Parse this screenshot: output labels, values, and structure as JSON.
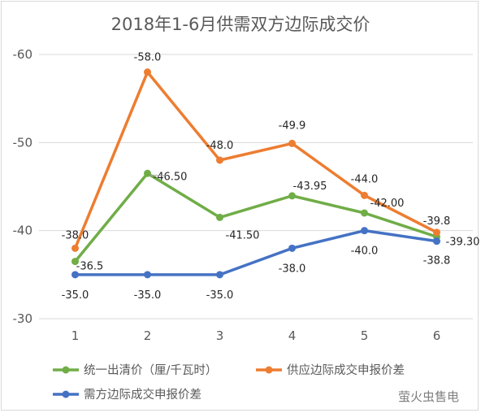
{
  "chart_data": {
    "type": "line",
    "title": "2018年1-6月供需双方边际成交价",
    "xlabel": "",
    "ylabel": "",
    "categories": [
      "1",
      "2",
      "3",
      "4",
      "5",
      "6"
    ],
    "ylim": [
      -30,
      -60
    ],
    "yticks": [
      "-60",
      "-50",
      "-40",
      "-30"
    ],
    "ytick_values": [
      -60,
      -50,
      -40,
      -30
    ],
    "y_axis_reversed": true,
    "grid": true,
    "legend_position": "bottom",
    "series": [
      {
        "name": "统一出清价（厘/千瓦时）",
        "color": "#70ad47",
        "values": [
          -36.5,
          -46.5,
          -41.5,
          -43.95,
          -42.0,
          -39.3
        ],
        "labels": [
          "-36.5",
          "-46.50",
          "-41.50",
          "-43.95",
          "-42.00",
          "-39.30"
        ]
      },
      {
        "name": "供应边际成交申报价差",
        "color": "#ed7d31",
        "values": [
          -38.0,
          -58.0,
          -48.0,
          -49.9,
          -44.0,
          -39.8
        ],
        "labels": [
          "-38.0",
          "-58.0",
          "-48.0",
          "-49.9",
          "-44.0",
          "-39.8"
        ]
      },
      {
        "name": "需方边际成交申报价差",
        "color": "#4472c4",
        "values": [
          -35.0,
          -35.0,
          -35.0,
          -38.0,
          -40.0,
          -38.8
        ],
        "labels": [
          "-35.0",
          "-35.0",
          "-35.0",
          "-38.0",
          "-40.0",
          "-38.8"
        ]
      }
    ]
  },
  "watermark": "萤火虫售电"
}
